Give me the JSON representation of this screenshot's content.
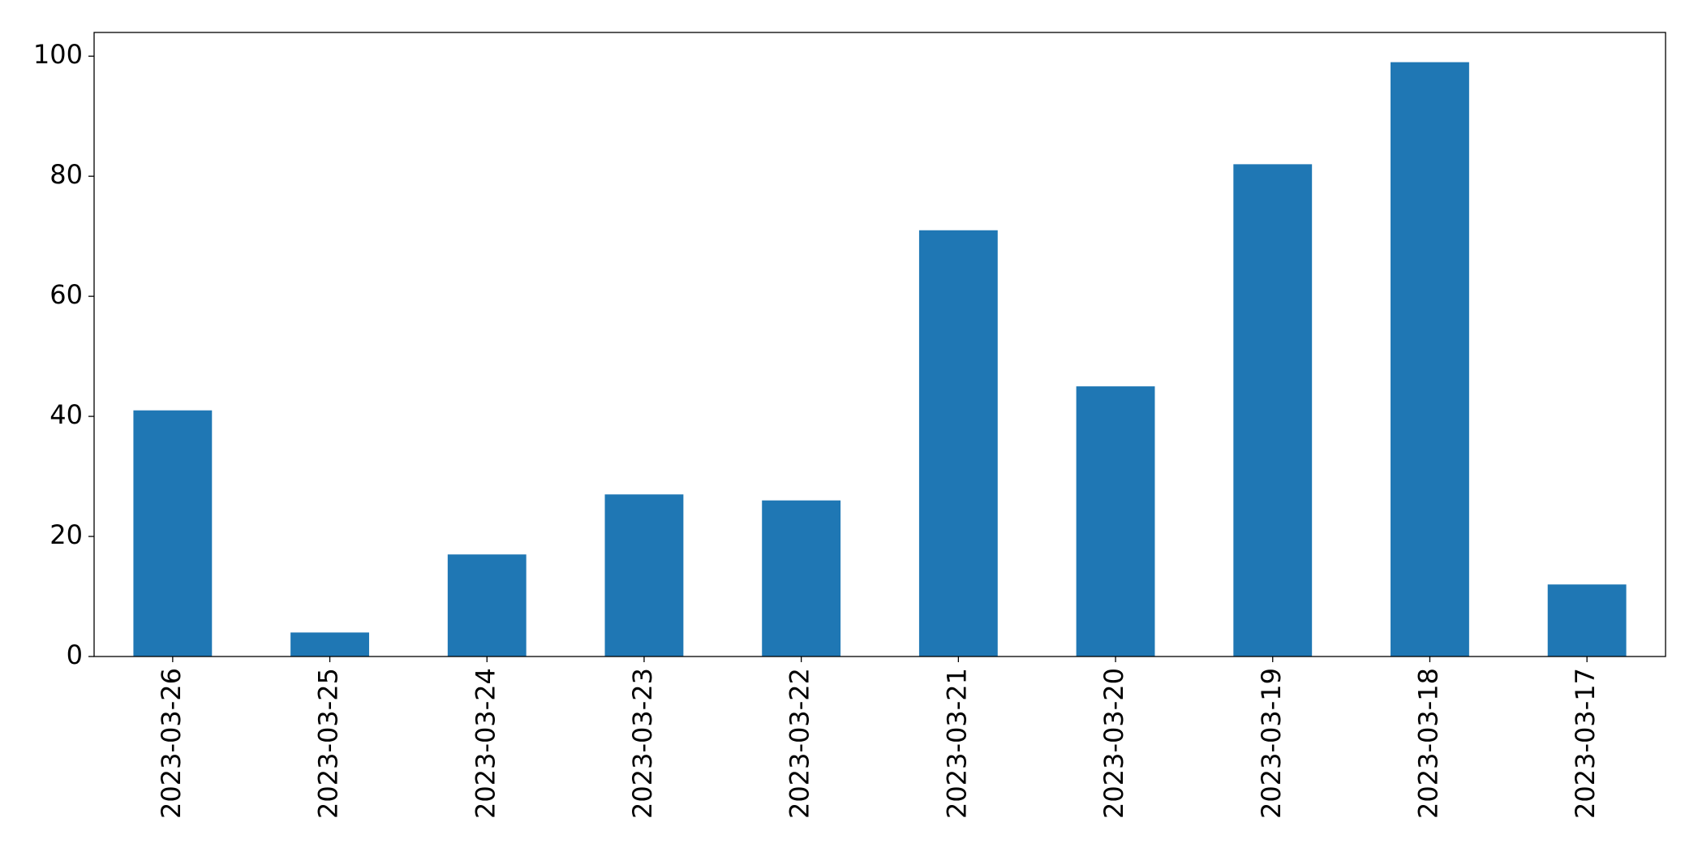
{
  "chart_data": {
    "type": "bar",
    "categories": [
      "2023-03-26",
      "2023-03-25",
      "2023-03-24",
      "2023-03-23",
      "2023-03-22",
      "2023-03-21",
      "2023-03-20",
      "2023-03-19",
      "2023-03-18",
      "2023-03-17"
    ],
    "values": [
      41,
      4,
      17,
      27,
      26,
      71,
      45,
      82,
      99,
      12
    ],
    "color": "#1f77b4",
    "ylim": [
      0,
      103.95
    ],
    "yticks": [
      0,
      20,
      40,
      60,
      80,
      100
    ],
    "grid": false
  }
}
